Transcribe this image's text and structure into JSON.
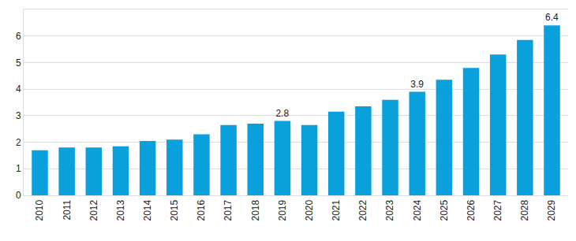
{
  "chart_data": {
    "type": "bar",
    "categories": [
      "2010",
      "2011",
      "2012",
      "2013",
      "2014",
      "2015",
      "2016",
      "2017",
      "2018",
      "2019",
      "2020",
      "2021",
      "2022",
      "2023",
      "2024",
      "2025",
      "2026",
      "2027",
      "2028",
      "2029"
    ],
    "values": [
      1.7,
      1.8,
      1.8,
      1.85,
      2.05,
      2.1,
      2.3,
      2.65,
      2.7,
      2.8,
      2.65,
      3.15,
      3.35,
      3.6,
      3.9,
      4.35,
      4.8,
      5.3,
      5.85,
      6.4
    ],
    "value_labels": [
      null,
      null,
      null,
      null,
      null,
      null,
      null,
      null,
      null,
      "2.8",
      null,
      null,
      null,
      null,
      "3.9",
      null,
      null,
      null,
      null,
      "6.4"
    ],
    "data_labels": true,
    "color": "#0aa0dc",
    "ylim": [
      0,
      7
    ],
    "yticks": [
      0,
      1,
      2,
      3,
      4,
      5,
      6
    ],
    "grid": true
  }
}
